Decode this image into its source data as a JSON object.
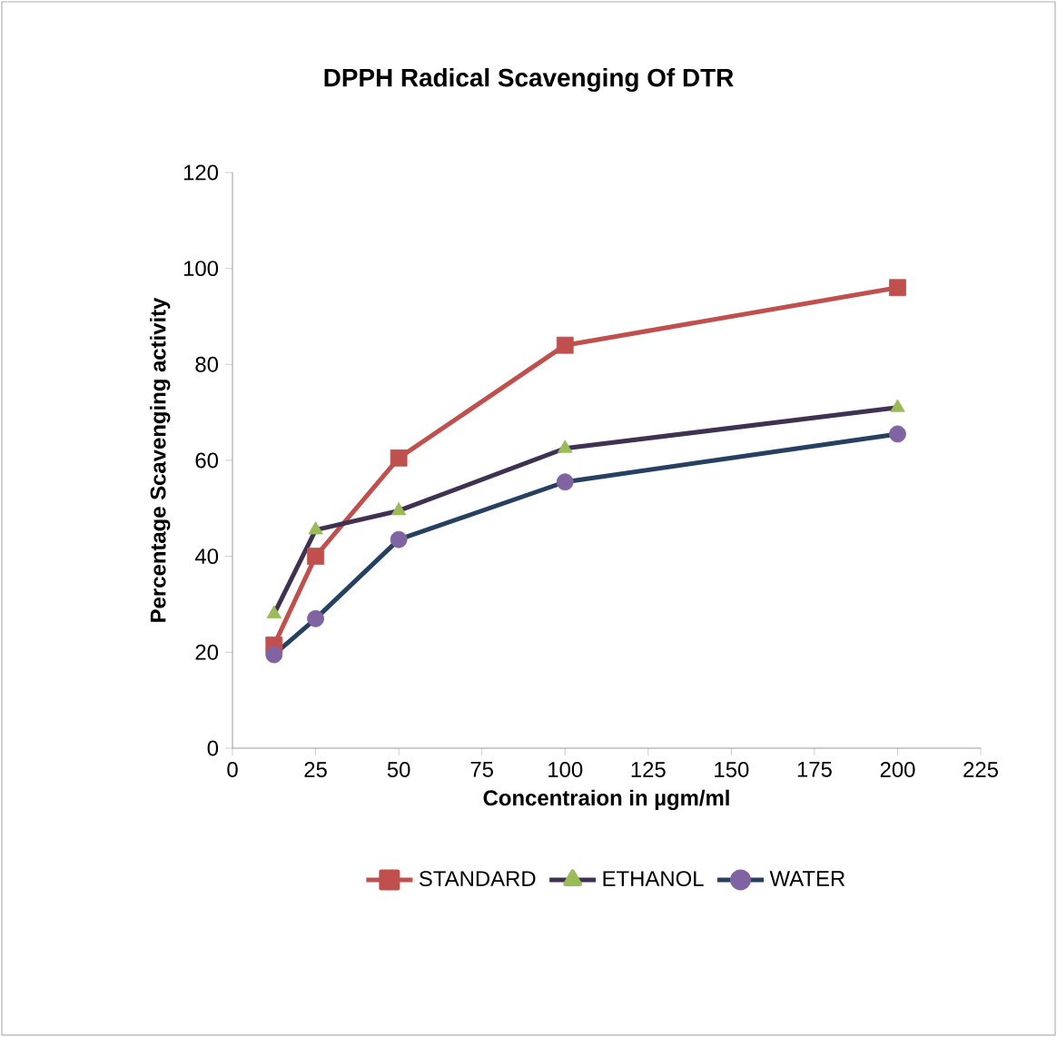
{
  "chart_data": {
    "type": "line",
    "title": "DPPH Radical Scavenging Of DTR",
    "xlabel": "Concentraion in µgm/ml",
    "ylabel": "Percentage Scavenging activity",
    "x": [
      12.5,
      25,
      50,
      100,
      200
    ],
    "series": [
      {
        "name": "STANDARD",
        "color": "#c0504d",
        "marker": "square",
        "colors": [
          "#c0504d",
          "#c0504d",
          "#c0504d",
          "#c0504d",
          "#c0504d"
        ],
        "values": [
          21.5,
          40,
          60.5,
          84,
          96
        ]
      },
      {
        "name": "ETHANOL",
        "color": "#403152",
        "marker": "triangle",
        "colors": [
          "#9bbb59",
          "#9bbb59",
          "#9bbb59",
          "#9bbb59",
          "#9bbb59"
        ],
        "values": [
          28,
          45.5,
          49.5,
          62.5,
          71
        ]
      },
      {
        "name": "WATER",
        "color": "#254061",
        "marker": "circle",
        "colors": [
          "#8064a2",
          "#8064a2",
          "#8064a2",
          "#8064a2",
          "#8064a2"
        ],
        "values": [
          19.5,
          27,
          43.5,
          55.5,
          65.5
        ]
      }
    ],
    "xlim": [
      0,
      225
    ],
    "xticks": [
      0,
      25,
      50,
      75,
      100,
      125,
      150,
      175,
      200,
      225
    ],
    "ylim": [
      0,
      120
    ],
    "yticks": [
      0,
      20,
      40,
      60,
      80,
      100,
      120
    ],
    "legend": "bottom",
    "line_style": "solid"
  }
}
